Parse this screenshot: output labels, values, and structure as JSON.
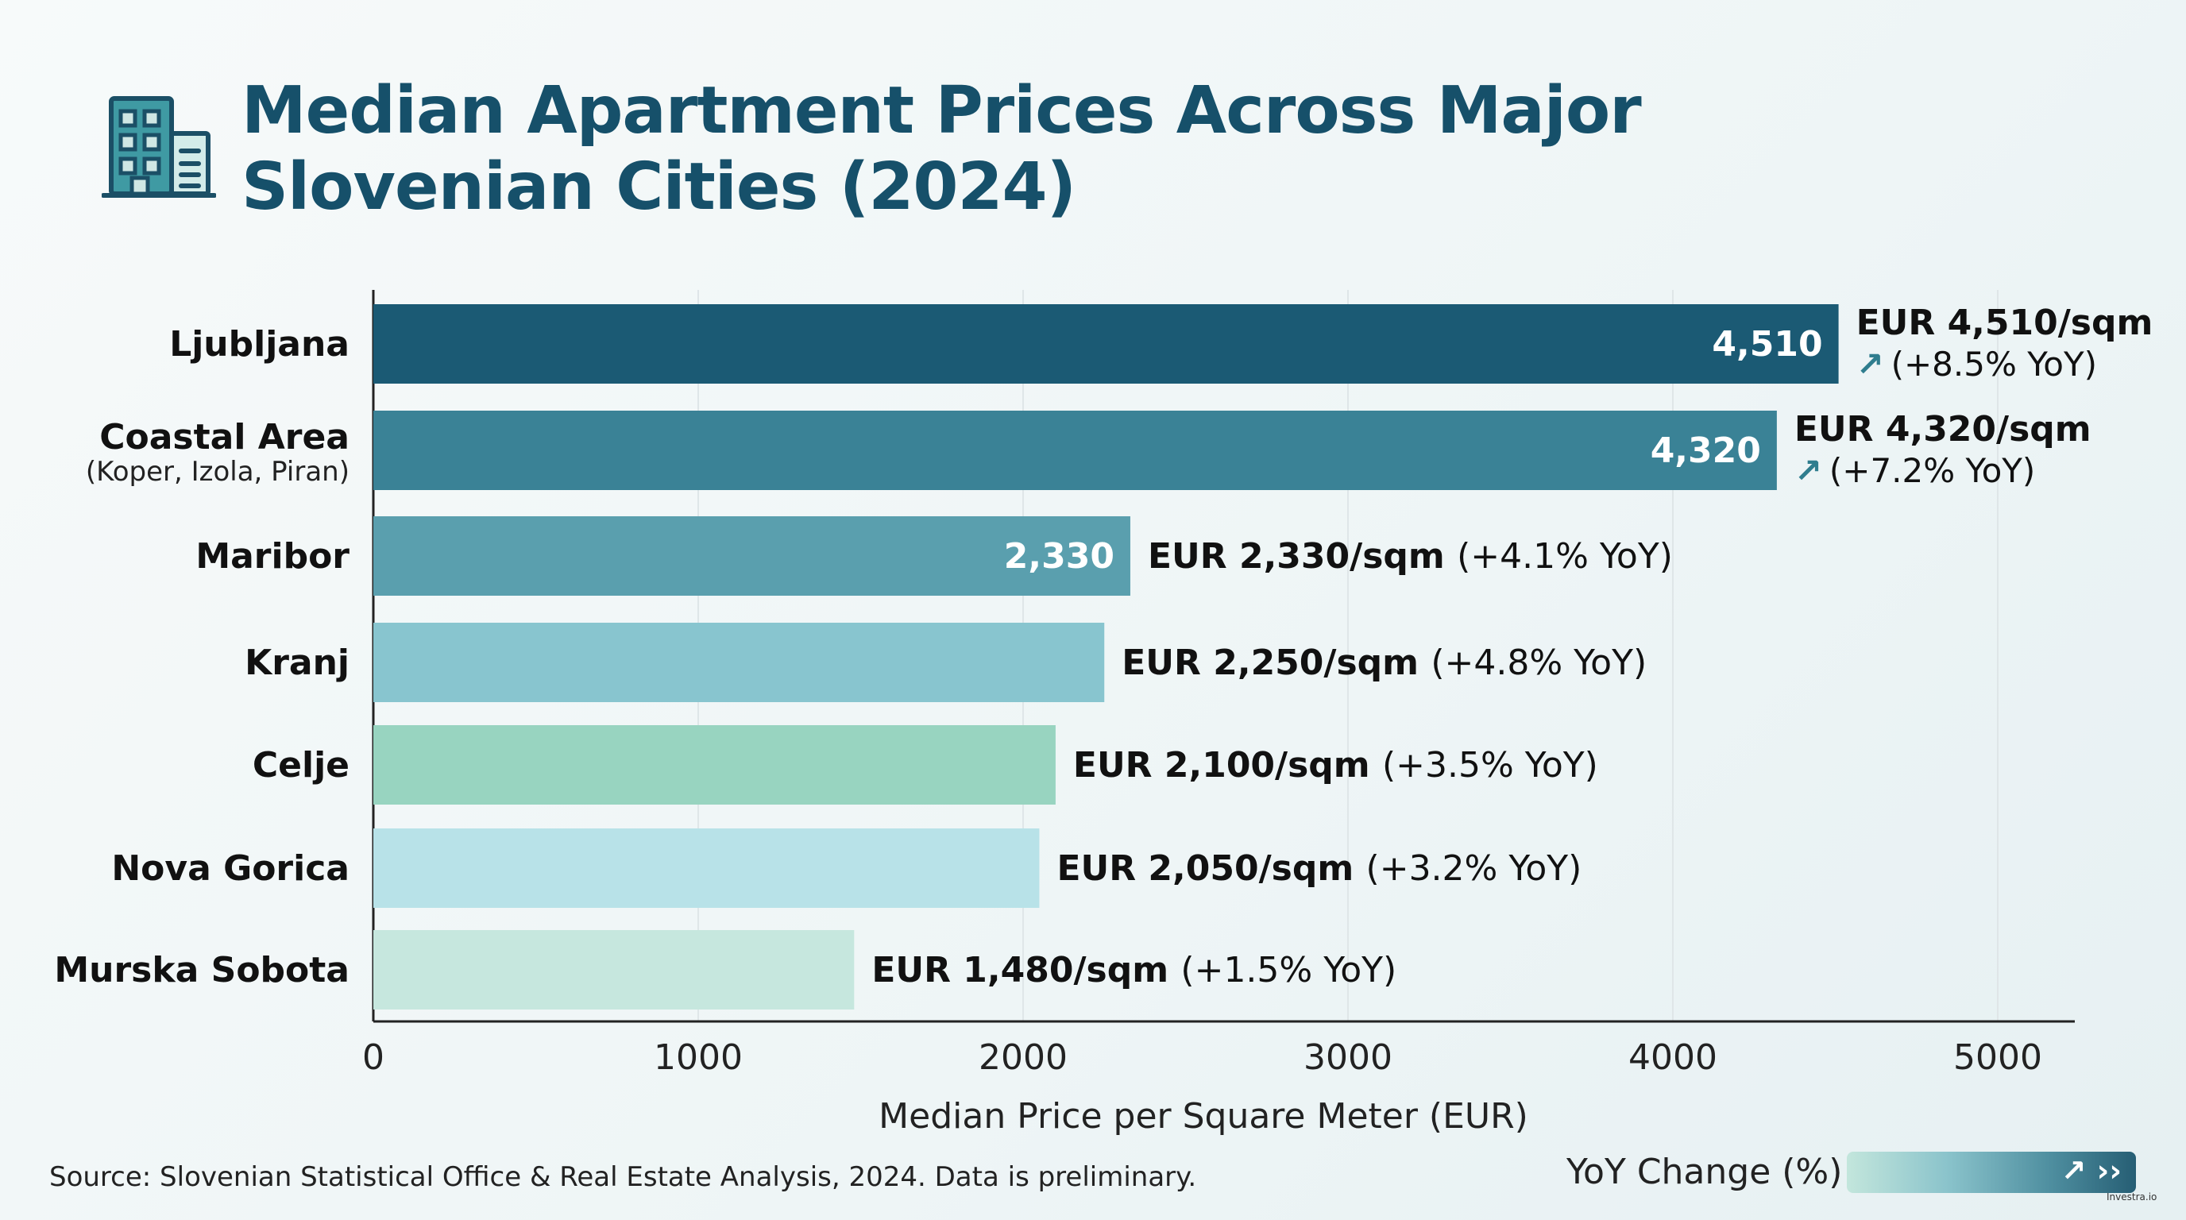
{
  "title_lines": [
    "Median Apartment Prices Across Major",
    "Slovenian Cities (2024)"
  ],
  "logo_icon": "building-icon",
  "source": "Source: Slovenian Statistical Office & Real Estate Analysis, 2024. Data is preliminary.",
  "legend": {
    "label": "YoY Change (%)",
    "icons": "↗ ››"
  },
  "watermark": "Investra.io",
  "chart_data": {
    "type": "bar",
    "orientation": "horizontal",
    "xlabel": "Median Price per Square Meter (EUR)",
    "xlim": [
      0,
      5000
    ],
    "xticks": [
      0,
      1000,
      2000,
      3000,
      4000,
      5000
    ],
    "grid": true,
    "categories": [
      "Ljubljana",
      "Coastal Area",
      "Maribor",
      "Kranj",
      "Celje",
      "Nova Gorica",
      "Murska Sobota"
    ],
    "subtitles": [
      "",
      "(Koper, Izola, Piran)",
      "",
      "",
      "",
      "",
      ""
    ],
    "values": [
      4510,
      4320,
      2330,
      2250,
      2100,
      2050,
      1480
    ],
    "yoy_percent": [
      8.5,
      7.2,
      4.1,
      4.8,
      3.5,
      3.2,
      1.5
    ],
    "inner_labels": [
      "4,510",
      "4,320",
      "2,330",
      "",
      "",
      "",
      ""
    ],
    "price_labels": [
      "EUR 4,510/sqm",
      "EUR 4,320/sqm",
      "EUR 2,330/sqm",
      "EUR 2,250/sqm",
      "EUR 2,100/sqm",
      "EUR 2,050/sqm",
      "EUR 1,480/sqm"
    ],
    "yoy_labels": [
      "(+8.5% YoY)",
      "(+7.2% YoY)",
      "(+4.1% YoY)",
      "(+4.8% YoY)",
      "(+3.5% YoY)",
      "(+3.2% YoY)",
      "(+1.5% YoY)"
    ],
    "colors": [
      "#1b5a74",
      "#3a8296",
      "#5a9fae",
      "#88c5cf",
      "#98d4c0",
      "#b8e2e8",
      "#c6e7de"
    ]
  }
}
